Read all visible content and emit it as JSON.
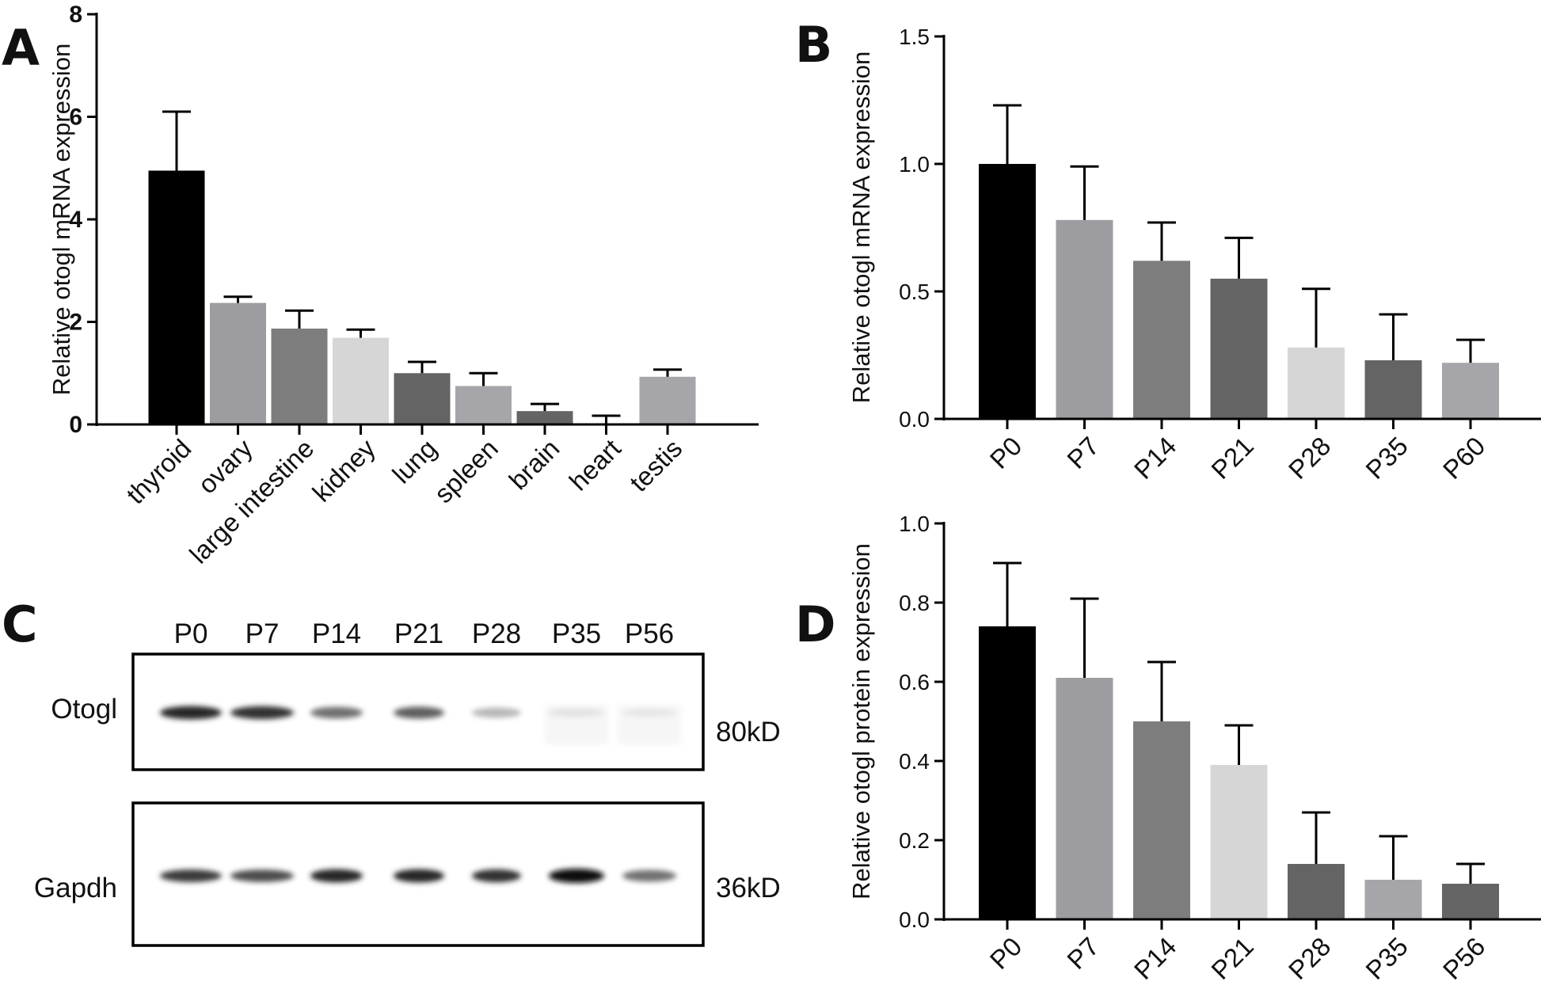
{
  "panels": {
    "a": {
      "letter": "A"
    },
    "b": {
      "letter": "B"
    },
    "c": {
      "letter": "C"
    },
    "d": {
      "letter": "D"
    }
  },
  "blot": {
    "lanes": [
      "P0",
      "P7",
      "P14",
      "P21",
      "P28",
      "P35",
      "P56"
    ],
    "rows": [
      {
        "label": "Otogl",
        "size": "80kD",
        "intensities": [
          0.85,
          0.8,
          0.6,
          0.65,
          0.35,
          0.08,
          0.05
        ]
      },
      {
        "label": "Gapdh",
        "size": "36kD",
        "intensities": [
          0.75,
          0.7,
          0.85,
          0.85,
          0.8,
          1.0,
          0.6
        ]
      }
    ]
  },
  "chart_data": [
    {
      "type": "bar",
      "panel": "A",
      "categories": [
        "thyroid",
        "ovary",
        "large intestine",
        "kidney",
        "lung",
        "spleen",
        "brain",
        "heart",
        "testis"
      ],
      "values": [
        4.95,
        2.37,
        1.87,
        1.69,
        1.0,
        0.75,
        0.26,
        0.02,
        0.93
      ],
      "error": [
        1.15,
        0.12,
        0.35,
        0.16,
        0.22,
        0.25,
        0.14,
        0.15,
        0.14
      ],
      "colors": [
        "#000000",
        "#9d9da1",
        "#7d7d7d",
        "#d6d6d6",
        "#646464",
        "#a6a6aa",
        "#646464",
        "#646464",
        "#a6a6aa"
      ],
      "ylabel": "Relative otogl mRNA expression",
      "ylim": [
        0,
        8
      ],
      "yticks": [
        "0",
        "2",
        "4",
        "6",
        "8"
      ],
      "ytick_values": [
        0,
        2,
        4,
        6,
        8
      ]
    },
    {
      "type": "bar",
      "panel": "B",
      "categories": [
        "P0",
        "P7",
        "P14",
        "P21",
        "P28",
        "P35",
        "P60"
      ],
      "values": [
        1.0,
        0.78,
        0.62,
        0.55,
        0.28,
        0.23,
        0.22
      ],
      "error": [
        0.23,
        0.21,
        0.15,
        0.16,
        0.23,
        0.18,
        0.09
      ],
      "colors": [
        "#000000",
        "#9d9da1",
        "#7d7d7d",
        "#646464",
        "#d6d6d6",
        "#646464",
        "#a6a6aa"
      ],
      "ylabel": "Relative otogl mRNA expression",
      "ylim": [
        0,
        1.5
      ],
      "yticks": [
        "0.0",
        "0.5",
        "1.0",
        "1.5"
      ],
      "ytick_values": [
        0,
        0.5,
        1.0,
        1.5
      ]
    },
    {
      "type": "bar",
      "panel": "D",
      "categories": [
        "P0",
        "P7",
        "P14",
        "P21",
        "P28",
        "P35",
        "P56"
      ],
      "values": [
        0.74,
        0.61,
        0.5,
        0.39,
        0.14,
        0.1,
        0.09
      ],
      "error": [
        0.16,
        0.2,
        0.15,
        0.1,
        0.13,
        0.11,
        0.05
      ],
      "colors": [
        "#000000",
        "#9d9da1",
        "#7d7d7d",
        "#d6d6d6",
        "#646464",
        "#a6a6aa",
        "#646464"
      ],
      "ylabel": "Relative otogl protein expression",
      "ylim": [
        0,
        1.0
      ],
      "yticks": [
        "0.0",
        "0.2",
        "0.4",
        "0.6",
        "0.8",
        "1.0"
      ],
      "ytick_values": [
        0,
        0.2,
        0.4,
        0.6,
        0.8,
        1.0
      ]
    }
  ]
}
